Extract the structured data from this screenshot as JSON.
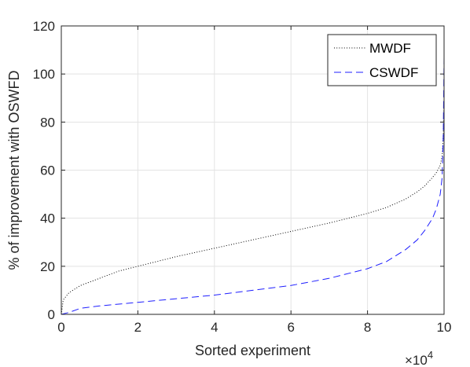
{
  "chart_data": {
    "type": "line",
    "xlabel": "Sorted experiment",
    "ylabel": "% of improvement with OSWFD",
    "xlim": [
      0,
      100000
    ],
    "ylim": [
      0,
      120
    ],
    "x_ticks": [
      0,
      20000,
      40000,
      60000,
      80000,
      100000
    ],
    "x_tick_labels": [
      "0",
      "2",
      "4",
      "6",
      "8",
      "10"
    ],
    "x_exponent_label": "×10",
    "x_exponent_power": "4",
    "y_ticks": [
      0,
      20,
      40,
      60,
      80,
      100,
      120
    ],
    "y_tick_labels": [
      "0",
      "20",
      "40",
      "60",
      "80",
      "100",
      "120"
    ],
    "grid": true,
    "legend_position": "top-right",
    "series": [
      {
        "name": "MWDF",
        "color": "#000000",
        "line_style": "dotted",
        "x": [
          0,
          500,
          2000,
          5000,
          10000,
          15000,
          20000,
          30000,
          40000,
          50000,
          60000,
          70000,
          80000,
          85000,
          90000,
          93000,
          95000,
          97000,
          98000,
          99000,
          99500,
          99800,
          100000
        ],
        "y": [
          0,
          6,
          9,
          12,
          15,
          18,
          20,
          24,
          27.5,
          31,
          34.5,
          38,
          42,
          44.5,
          48,
          51,
          53.5,
          57,
          59,
          62,
          66,
          75,
          90
        ]
      },
      {
        "name": "CSWDF",
        "color": "#1f1fff",
        "line_style": "dashed",
        "x": [
          0,
          2000,
          5000,
          10000,
          20000,
          30000,
          40000,
          50000,
          60000,
          70000,
          80000,
          85000,
          90000,
          93000,
          95000,
          97000,
          98000,
          99000,
          99500,
          99800,
          100000
        ],
        "y": [
          0,
          0.8,
          2.5,
          3.5,
          5,
          6.5,
          8,
          10,
          12,
          15,
          19,
          22,
          27,
          31,
          35,
          40,
          44,
          50,
          57,
          75,
          107
        ]
      }
    ]
  }
}
